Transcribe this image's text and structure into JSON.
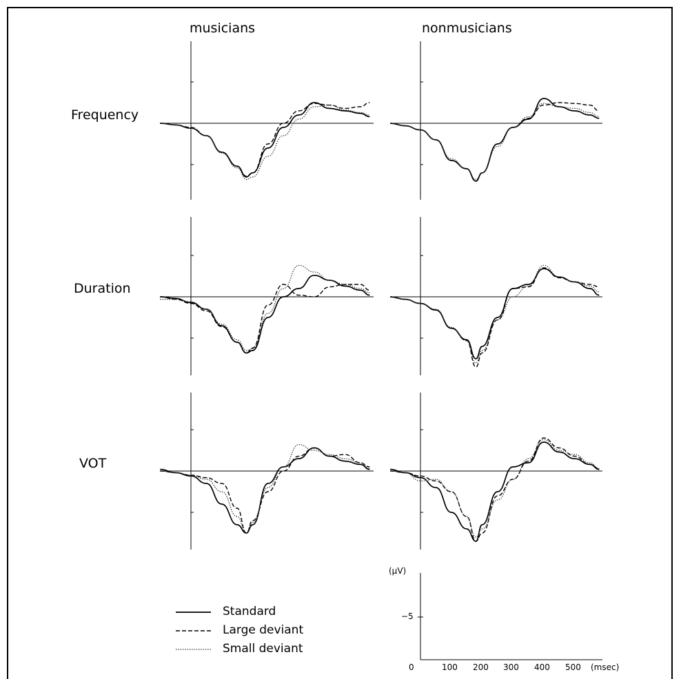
{
  "chart_data": {
    "type": "line",
    "columns": [
      "musicians",
      "nonmusicians"
    ],
    "rows": [
      "Frequency",
      "Duration",
      "VOT"
    ],
    "legend": [
      {
        "name": "Standard",
        "style": "solid"
      },
      {
        "name": "Large deviant",
        "style": "dashed"
      },
      {
        "name": "Small deviant",
        "style": "dotted"
      }
    ],
    "x_unit": "(msec)",
    "y_unit": "(μV)",
    "x_ticks": [
      "0",
      "100",
      "200",
      "300",
      "400",
      "500"
    ],
    "y_tick": "−5",
    "xlim": [
      -100,
      580
    ],
    "ylim_negative_up": [
      -7,
      3.5
    ],
    "series_x": [
      -100,
      -50,
      0,
      50,
      100,
      150,
      180,
      200,
      250,
      300,
      350,
      400,
      450,
      500,
      550,
      580
    ],
    "panels": [
      {
        "row": "Frequency",
        "column": "musicians",
        "series": [
          {
            "name": "Standard",
            "values": [
              0,
              0.2,
              0.6,
              1.5,
              3.5,
              5.2,
              6.5,
              6.0,
              3.0,
              0.5,
              -1.0,
              -2.5,
              -1.8,
              -1.5,
              -1.2,
              -0.8
            ]
          },
          {
            "name": "Large deviant",
            "values": [
              0,
              0.2,
              0.5,
              1.5,
              3.5,
              5.2,
              6.4,
              6.0,
              2.5,
              0.0,
              -1.5,
              -2.4,
              -2.2,
              -1.8,
              -2.0,
              -2.5
            ]
          },
          {
            "name": "Small deviant",
            "values": [
              0,
              0.2,
              0.6,
              1.5,
              3.6,
              5.4,
              6.8,
              6.5,
              4.0,
              1.5,
              -0.5,
              -2.0,
              -2.2,
              -1.6,
              -1.3,
              -1.0
            ]
          }
        ]
      },
      {
        "row": "Frequency",
        "column": "nonmusicians",
        "series": [
          {
            "name": "Standard",
            "values": [
              0,
              0.3,
              0.8,
              2.0,
              4.5,
              5.5,
              7.0,
              6.0,
              2.5,
              0.5,
              -0.5,
              -3.0,
              -2.0,
              -1.5,
              -1.0,
              -0.6
            ]
          },
          {
            "name": "Large deviant",
            "values": [
              0,
              0.3,
              0.8,
              2.0,
              4.5,
              5.5,
              7.0,
              6.0,
              2.5,
              0.5,
              -0.6,
              -2.2,
              -2.5,
              -2.4,
              -2.2,
              -1.5
            ]
          },
          {
            "name": "Small deviant",
            "values": [
              0,
              0.3,
              0.8,
              2.0,
              4.3,
              5.5,
              6.8,
              6.0,
              2.8,
              0.5,
              -0.8,
              -2.4,
              -2.0,
              -1.8,
              -1.3,
              -0.8
            ]
          }
        ]
      },
      {
        "row": "Duration",
        "column": "musicians",
        "series": [
          {
            "name": "Standard",
            "values": [
              0,
              0.2,
              0.7,
              1.5,
              3.5,
              5.5,
              6.8,
              6.5,
              2.5,
              0.0,
              -1.0,
              -2.6,
              -2.0,
              -1.3,
              -0.8,
              -0.2
            ]
          },
          {
            "name": "Large deviant",
            "values": [
              0,
              0.3,
              0.8,
              1.7,
              3.6,
              5.5,
              6.8,
              6.2,
              1.0,
              -1.5,
              -0.2,
              0.0,
              -1.2,
              -1.5,
              -1.5,
              -0.8
            ]
          },
          {
            "name": "Small deviant",
            "values": [
              0.3,
              0.3,
              0.6,
              1.5,
              3.3,
              5.2,
              6.5,
              6.3,
              2.0,
              -1.0,
              -3.8,
              -3.0,
              -2.0,
              -1.5,
              -1.0,
              -0.5
            ]
          }
        ]
      },
      {
        "row": "Duration",
        "column": "nonmusicians",
        "series": [
          {
            "name": "Standard",
            "values": [
              0,
              0.3,
              0.8,
              1.6,
              3.8,
              5.2,
              7.5,
              6.0,
              2.5,
              -1.0,
              -1.5,
              -3.4,
              -2.4,
              -1.8,
              -1.0,
              -0.2
            ]
          },
          {
            "name": "Large deviant",
            "values": [
              0,
              0.3,
              0.8,
              1.6,
              3.8,
              5.3,
              8.5,
              6.8,
              2.8,
              -1.0,
              -1.2,
              -3.5,
              -2.3,
              -1.8,
              -1.5,
              -1.2
            ]
          },
          {
            "name": "Small deviant",
            "values": [
              0,
              0.3,
              0.8,
              1.5,
              3.7,
              5.3,
              8.0,
              6.5,
              2.8,
              0.0,
              -1.3,
              -3.8,
              -2.4,
              -1.8,
              -1.3,
              -0.6
            ]
          }
        ]
      },
      {
        "row": "VOT",
        "column": "musicians",
        "series": [
          {
            "name": "Standard",
            "values": [
              -0.2,
              0.2,
              0.6,
              1.5,
              4.0,
              6.5,
              7.5,
              6.5,
              1.5,
              -0.5,
              -1.5,
              -2.8,
              -1.8,
              -1.2,
              -0.8,
              -0.2
            ]
          },
          {
            "name": "Large deviant",
            "values": [
              0,
              0.2,
              0.5,
              0.8,
              1.5,
              4.5,
              7.5,
              6.0,
              2.5,
              0.0,
              -1.8,
              -2.8,
              -1.8,
              -2.0,
              -1.0,
              -0.5
            ]
          },
          {
            "name": "Small deviant",
            "values": [
              0,
              0.2,
              0.5,
              1.0,
              2.5,
              5.5,
              7.5,
              6.2,
              2.0,
              -0.5,
              -3.2,
              -2.5,
              -2.0,
              -1.5,
              -1.0,
              -0.3
            ]
          }
        ]
      },
      {
        "row": "VOT",
        "column": "nonmusicians",
        "series": [
          {
            "name": "Standard",
            "values": [
              -0.2,
              0.2,
              0.8,
              2.0,
              5.0,
              7.0,
              8.5,
              6.5,
              2.5,
              -0.5,
              -1.0,
              -3.5,
              -2.3,
              -1.5,
              -0.8,
              -0.2
            ]
          },
          {
            "name": "Large deviant",
            "values": [
              0,
              0.2,
              0.6,
              1.2,
              2.5,
              5.5,
              8.5,
              7.5,
              3.0,
              1.0,
              -1.2,
              -4.0,
              -2.8,
              -1.8,
              -0.8,
              -0.3
            ]
          },
          {
            "name": "Small deviant",
            "values": [
              0,
              0.2,
              1.2,
              1.0,
              2.5,
              5.5,
              8.0,
              7.0,
              3.5,
              1.0,
              -1.5,
              -3.8,
              -2.5,
              -2.0,
              -1.0,
              -0.3
            ]
          }
        ]
      }
    ]
  }
}
